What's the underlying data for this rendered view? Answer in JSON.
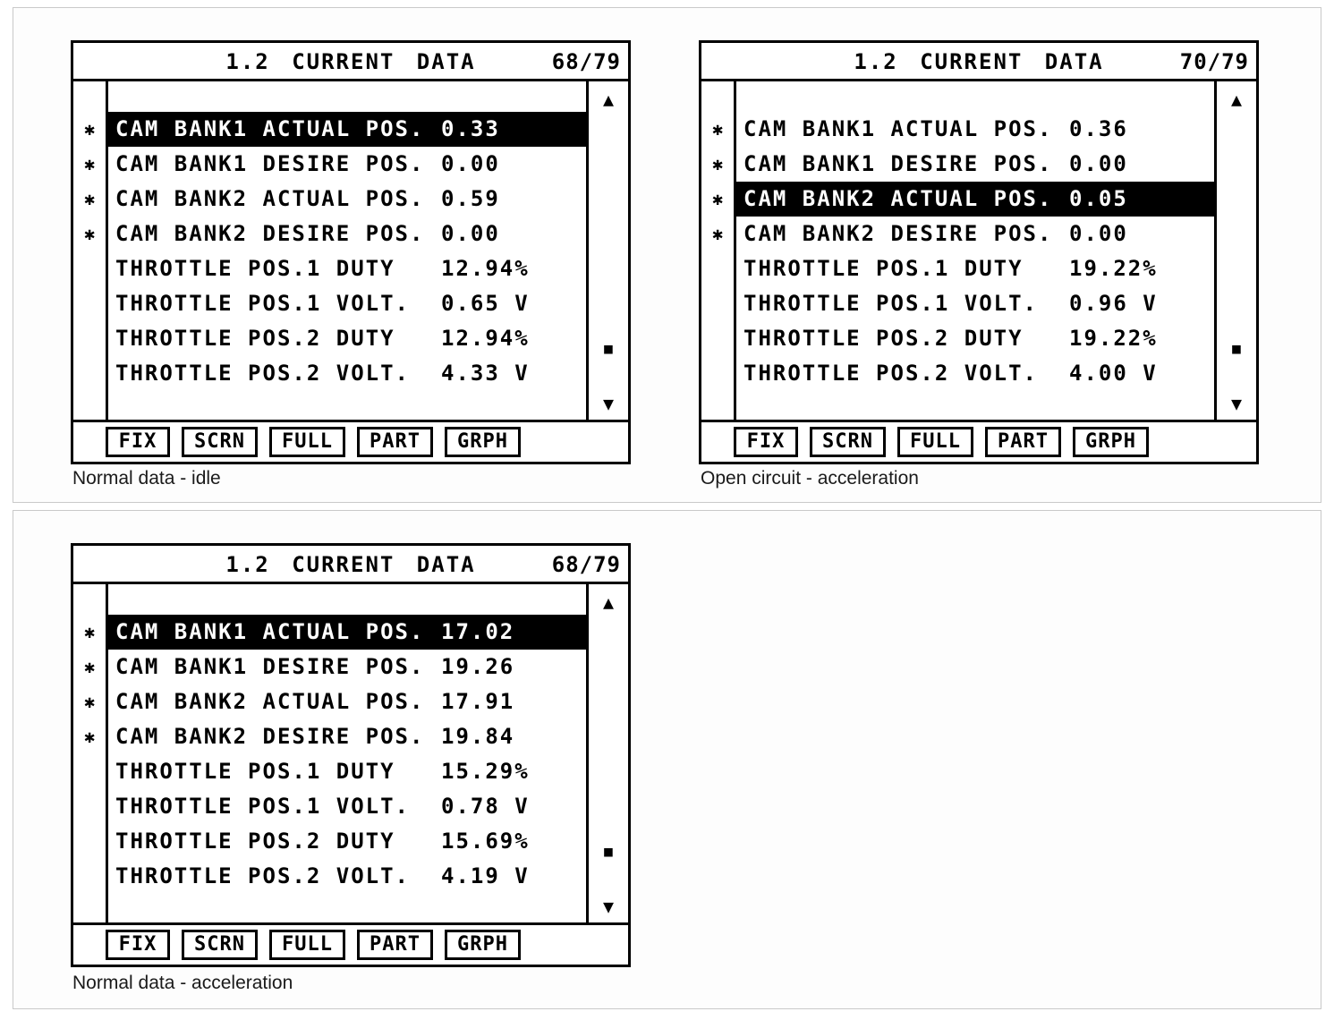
{
  "toolbar": {
    "buttons": [
      "FIX",
      "SCRN",
      "FULL",
      "PART",
      "GRPH"
    ]
  },
  "scrollbar": {
    "up": "▲",
    "thumb": "■",
    "down": "▼"
  },
  "screens": [
    {
      "title": "1.2 CURRENT DATA",
      "page": "68/79",
      "caption": "Normal data - idle",
      "rows": [
        {
          "mark": "✱",
          "label": "CAM BANK1 ACTUAL POS.",
          "value": "0.33"
        },
        {
          "mark": "✱",
          "label": "CAM BANK1 DESIRE POS.",
          "value": "0.00"
        },
        {
          "mark": "✱",
          "label": "CAM BANK2 ACTUAL POS.",
          "value": "0.59"
        },
        {
          "mark": "✱",
          "label": "CAM BANK2 DESIRE POS.",
          "value": "0.00"
        },
        {
          "mark": "",
          "label": "THROTTLE POS.1 DUTY",
          "value": "12.94%"
        },
        {
          "mark": "",
          "label": "THROTTLE POS.1 VOLT.",
          "value": "0.65 V"
        },
        {
          "mark": "",
          "label": "THROTTLE POS.2 DUTY",
          "value": "12.94%"
        },
        {
          "mark": "",
          "label": "THROTTLE POS.2 VOLT.",
          "value": "4.33 V"
        }
      ]
    },
    {
      "title": "1.2 CURRENT DATA",
      "page": "70/79",
      "caption": "Open circuit - acceleration",
      "rows": [
        {
          "mark": "✱",
          "label": "CAM BANK1 ACTUAL POS.",
          "value": "0.36"
        },
        {
          "mark": "✱",
          "label": "CAM BANK1 DESIRE POS.",
          "value": "0.00"
        },
        {
          "mark": "✱",
          "label": "CAM BANK2 ACTUAL POS.",
          "value": "0.05"
        },
        {
          "mark": "✱",
          "label": "CAM BANK2 DESIRE POS.",
          "value": "0.00"
        },
        {
          "mark": "",
          "label": "THROTTLE POS.1 DUTY",
          "value": "19.22%"
        },
        {
          "mark": "",
          "label": "THROTTLE POS.1 VOLT.",
          "value": "0.96 V"
        },
        {
          "mark": "",
          "label": "THROTTLE POS.2 DUTY",
          "value": "19.22%"
        },
        {
          "mark": "",
          "label": "THROTTLE POS.2 VOLT.",
          "value": "4.00 V"
        }
      ]
    },
    {
      "title": "1.2 CURRENT DATA",
      "page": "68/79",
      "caption": "Normal data - acceleration",
      "rows": [
        {
          "mark": "✱",
          "label": "CAM BANK1 ACTUAL POS.",
          "value": "17.02"
        },
        {
          "mark": "✱",
          "label": "CAM BANK1 DESIRE POS.",
          "value": "19.26"
        },
        {
          "mark": "✱",
          "label": "CAM BANK2 ACTUAL POS.",
          "value": "17.91"
        },
        {
          "mark": "✱",
          "label": "CAM BANK2 DESIRE POS.",
          "value": "19.84"
        },
        {
          "mark": "",
          "label": "THROTTLE POS.1 DUTY",
          "value": "15.29%"
        },
        {
          "mark": "",
          "label": "THROTTLE POS.1 VOLT.",
          "value": "0.78 V"
        },
        {
          "mark": "",
          "label": "THROTTLE POS.2 DUTY",
          "value": "15.69%"
        },
        {
          "mark": "",
          "label": "THROTTLE POS.2 VOLT.",
          "value": "4.19 V"
        }
      ]
    }
  ]
}
